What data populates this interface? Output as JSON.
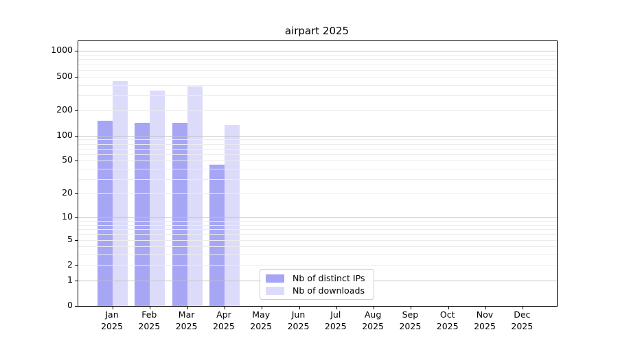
{
  "chart_data": {
    "type": "bar",
    "title": "airpart 2025",
    "categories": [
      "Jan",
      "Feb",
      "Mar",
      "Apr",
      "May",
      "Jun",
      "Jul",
      "Aug",
      "Sep",
      "Oct",
      "Nov",
      "Dec"
    ],
    "category_year": "2025",
    "series": [
      {
        "name": "Nb of distinct IPs",
        "color": "#a6a6f5",
        "values": [
          150,
          143,
          142,
          45,
          null,
          null,
          null,
          null,
          null,
          null,
          null,
          null
        ]
      },
      {
        "name": "Nb of downloads",
        "color": "#dcdcfa",
        "values": [
          440,
          343,
          385,
          135,
          null,
          null,
          null,
          null,
          null,
          null,
          null,
          null
        ]
      }
    ],
    "y_axis": {
      "scale": "log1p",
      "ticks": [
        0,
        1,
        2,
        5,
        10,
        20,
        50,
        100,
        200,
        500,
        1000
      ],
      "top_value": 1303,
      "major_gridlines": [
        1,
        10,
        100,
        1000
      ],
      "minor_gridlines": [
        2,
        3,
        4,
        5,
        6,
        7,
        8,
        9,
        20,
        30,
        40,
        50,
        60,
        70,
        80,
        90,
        200,
        300,
        400,
        500,
        600,
        700,
        800,
        900
      ]
    },
    "x_axis": {
      "label_line_2": "2025"
    },
    "grid": "horizontal",
    "legend_position": "lower-center"
  },
  "colors": {
    "background": "#ffffff",
    "axis": "#000000",
    "major_grid": "#c3c3c3",
    "minor_grid": "#ececec",
    "legend_border": "#cccccc"
  }
}
